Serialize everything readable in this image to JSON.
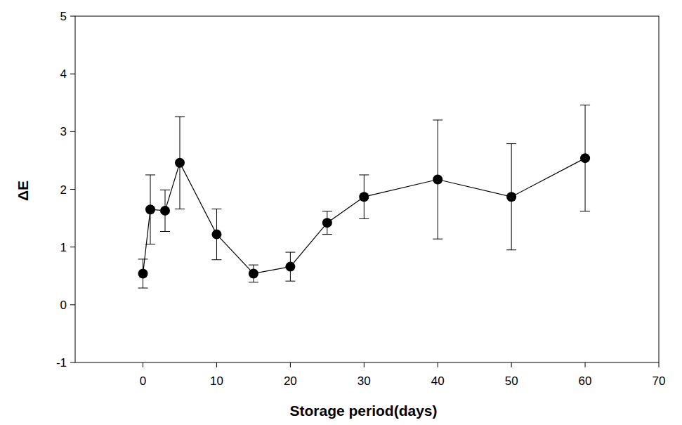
{
  "chart_data": {
    "type": "line",
    "x_label": "Storage period(days)",
    "y_label": "ΔE",
    "x": [
      0,
      1,
      3,
      5,
      10,
      15,
      20,
      25,
      30,
      40,
      50,
      60
    ],
    "values": [
      0.54,
      1.65,
      1.63,
      2.46,
      1.22,
      0.54,
      0.66,
      1.42,
      1.87,
      2.17,
      1.87,
      2.54
    ],
    "errors": [
      0.25,
      0.6,
      0.36,
      0.8,
      0.44,
      0.15,
      0.25,
      0.2,
      0.38,
      1.03,
      0.92,
      0.92
    ],
    "color": "#000000",
    "marker": "circle",
    "line_style": "solid",
    "xlim": [
      -9.2,
      70
    ],
    "xticks": [
      0,
      10,
      20,
      30,
      40,
      50,
      60,
      70
    ],
    "ylim": [
      -1,
      5
    ],
    "yticks": [
      -1,
      0,
      1,
      2,
      3,
      4,
      5
    ],
    "grid": false
  }
}
